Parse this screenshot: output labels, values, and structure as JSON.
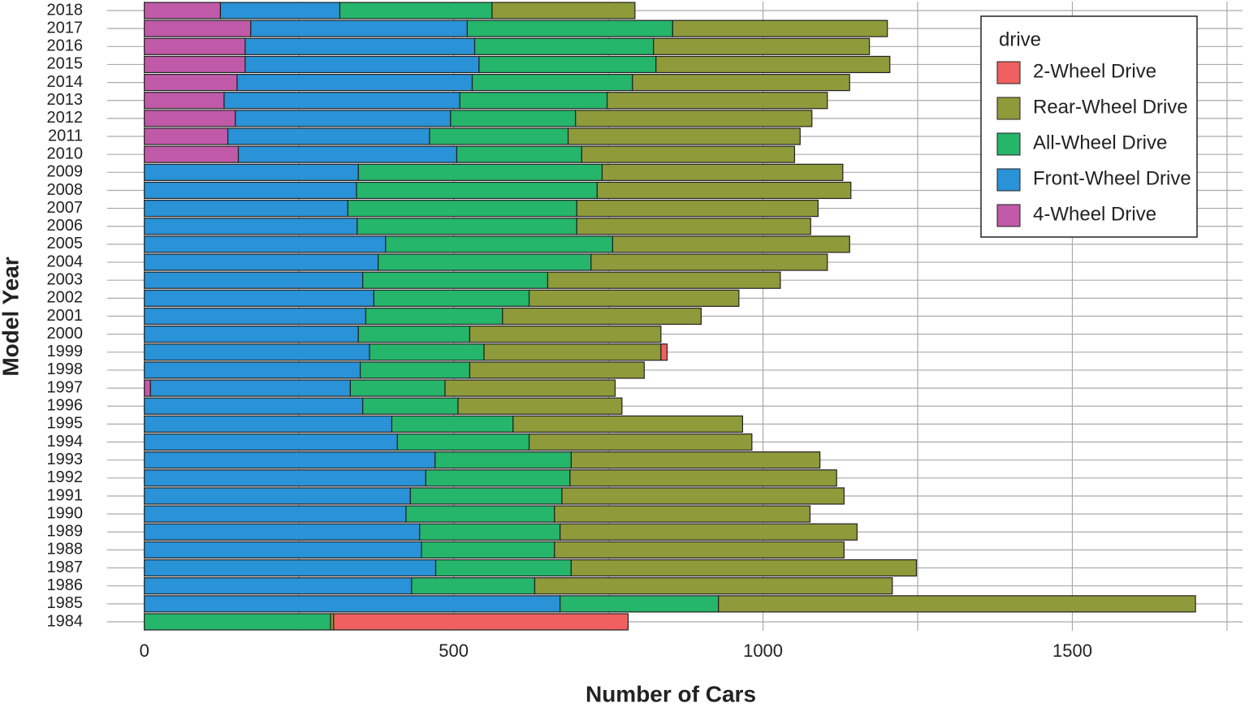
{
  "chart_data": {
    "type": "stacked-barh",
    "x_label": "Number of Cars",
    "y_label": "Model Year",
    "legend_title": "drive",
    "categories": [
      "2018",
      "2017",
      "2016",
      "2015",
      "2014",
      "2013",
      "2012",
      "2011",
      "2010",
      "2009",
      "2008",
      "2007",
      "2006",
      "2005",
      "2004",
      "2003",
      "2002",
      "2001",
      "2000",
      "1999",
      "1998",
      "1997",
      "1996",
      "1995",
      "1994",
      "1993",
      "1992",
      "1991",
      "1990",
      "1989",
      "1988",
      "1987",
      "1986",
      "1985",
      "1984"
    ],
    "series": [
      {
        "name": "4-Wheel Drive",
        "color": "#c05aa8",
        "values": [
          123,
          172,
          163,
          163,
          150,
          129,
          147,
          135,
          152,
          null,
          null,
          null,
          null,
          null,
          null,
          null,
          null,
          null,
          null,
          null,
          null,
          10,
          null,
          null,
          null,
          null,
          null,
          null,
          null,
          null,
          null,
          null,
          null,
          null,
          null
        ]
      },
      {
        "name": "Front-Wheel Drive",
        "color": "#2a92d6",
        "values": [
          193,
          350,
          371,
          378,
          380,
          381,
          348,
          326,
          353,
          346,
          343,
          329,
          344,
          390,
          378,
          353,
          371,
          358,
          346,
          364,
          349,
          323,
          353,
          400,
          409,
          470,
          455,
          430,
          423,
          445,
          448,
          471,
          432,
          672,
          null
        ]
      },
      {
        "name": "All-Wheel Drive",
        "color": "#25b56b",
        "values": [
          246,
          332,
          289,
          286,
          259,
          238,
          202,
          224,
          202,
          394,
          389,
          370,
          355,
          367,
          344,
          299,
          251,
          221,
          180,
          185,
          177,
          153,
          154,
          196,
          213,
          220,
          233,
          245,
          240,
          227,
          215,
          219,
          199,
          256,
          301
        ]
      },
      {
        "name": "Rear-Wheel Drive",
        "color": "#8f9a3a",
        "values": [
          231,
          347,
          349,
          378,
          351,
          356,
          382,
          375,
          344,
          389,
          410,
          390,
          378,
          383,
          382,
          376,
          339,
          321,
          309,
          286,
          282,
          275,
          265,
          371,
          360,
          402,
          431,
          456,
          413,
          480,
          468,
          558,
          578,
          771,
          5
        ]
      },
      {
        "name": "2-Wheel Drive",
        "color": "#f06060",
        "values": [
          null,
          null,
          null,
          null,
          null,
          null,
          null,
          null,
          null,
          null,
          null,
          null,
          null,
          null,
          null,
          null,
          null,
          null,
          null,
          10,
          null,
          null,
          null,
          null,
          null,
          null,
          null,
          null,
          null,
          null,
          null,
          null,
          null,
          null,
          476
        ]
      }
    ],
    "xlim": [
      -60,
      1775
    ],
    "xticks": [
      0,
      500,
      1000,
      1500
    ],
    "minor_xticks": [
      250,
      750,
      1250,
      1750
    ],
    "grid": true
  }
}
